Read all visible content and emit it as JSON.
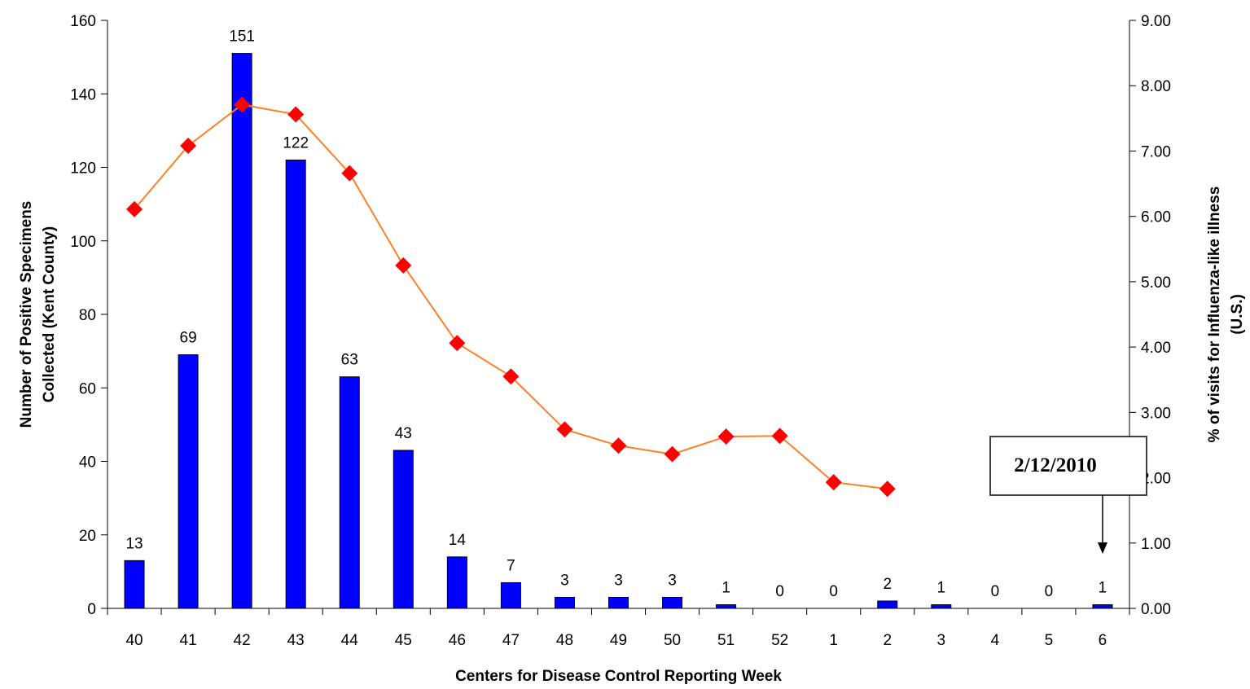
{
  "chart_data": {
    "type": "bar",
    "title": "",
    "xlabel": "Centers for Disease Control Reporting Week",
    "ylabel_left_line1": "Number of Positive Specimens",
    "ylabel_left_line2": "Collected (Kent County)",
    "ylabel_right_line1": "% of visits for Influenza-like illness",
    "ylabel_right_line2": "(U.S.)",
    "ylim_left": [
      0,
      160
    ],
    "ylim_right": [
      0,
      9
    ],
    "yticks_left": [
      "0",
      "20",
      "40",
      "60",
      "80",
      "100",
      "120",
      "140",
      "160"
    ],
    "yticks_right": [
      "0.00",
      "1.00",
      "2.00",
      "3.00",
      "4.00",
      "5.00",
      "6.00",
      "7.00",
      "8.00",
      "9.00"
    ],
    "categories": [
      "40",
      "41",
      "42",
      "43",
      "44",
      "45",
      "46",
      "47",
      "48",
      "49",
      "50",
      "51",
      "52",
      "1",
      "2",
      "3",
      "4",
      "5",
      "6"
    ],
    "series": [
      {
        "type": "bar",
        "axis": "left",
        "color": "#0000ff",
        "values": [
          13,
          69,
          151,
          122,
          63,
          43,
          14,
          7,
          3,
          3,
          3,
          1,
          0,
          0,
          2,
          1,
          0,
          0,
          1
        ],
        "labels": [
          "13",
          "69",
          "151",
          "122",
          "63",
          "43",
          "14",
          "7",
          "3",
          "3",
          "3",
          "1",
          "0",
          "0",
          "2",
          "1",
          "0",
          "0",
          "1"
        ]
      },
      {
        "type": "line",
        "axis": "right",
        "line_color": "#ff7f27",
        "marker_color": "#ff0000",
        "marker": "diamond",
        "values": [
          6.11,
          7.08,
          7.71,
          7.56,
          6.66,
          5.25,
          4.06,
          3.55,
          2.74,
          2.49,
          2.36,
          2.63,
          2.64,
          1.93,
          1.83,
          null,
          null,
          null,
          null
        ]
      }
    ],
    "annotation": {
      "text": "2/12/2010",
      "points_to_category": "6"
    },
    "grid": false,
    "legend": "none"
  }
}
